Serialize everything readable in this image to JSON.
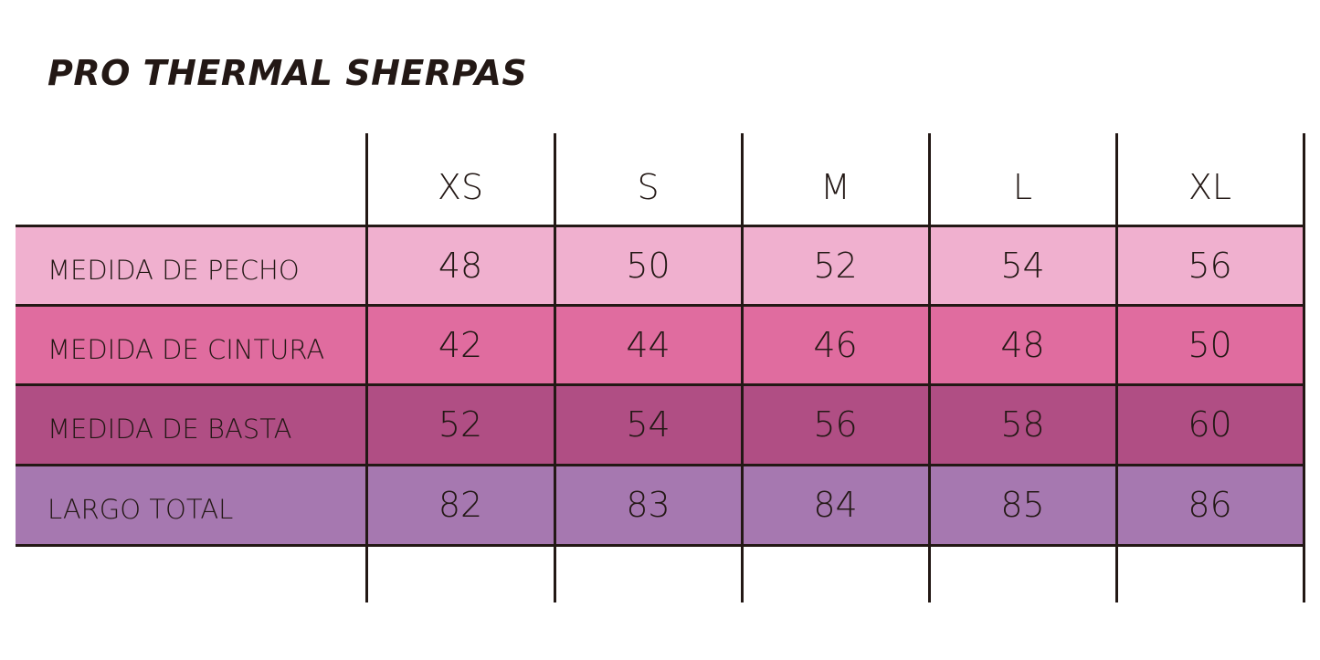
{
  "title": "PRO THERMAL SHERPAS",
  "table": {
    "header": [
      "XS",
      "S",
      "M",
      "L",
      "XL"
    ],
    "rows": [
      [
        "MEDIDA DE PECHO",
        48,
        50,
        52,
        54,
        56
      ],
      [
        "MEDIDA DE CINTURA",
        42,
        44,
        46,
        48,
        50
      ],
      [
        "MEDIDA DE BASTA",
        52,
        54,
        56,
        58,
        60
      ],
      [
        "LARGO TOTAL",
        82,
        83,
        84,
        85,
        86
      ]
    ]
  }
}
